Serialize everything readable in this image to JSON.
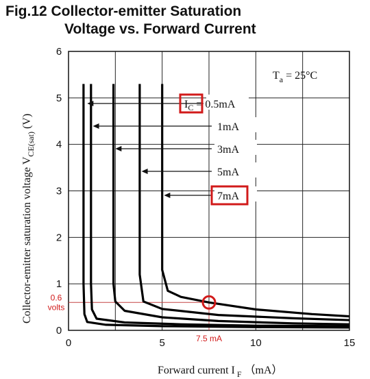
{
  "title_line1": "Fig.12 Collector-emitter Saturation",
  "title_line2": "Voltage vs. Forward Current",
  "chart_data": {
    "type": "line",
    "xlabel": "Forward current I",
    "xlabel_sub": "F",
    "xlabel_unit": "（mA）",
    "ylabel": "Collector-emitter saturation voltage V",
    "ylabel_sub": "CE(sat)",
    "ylabel_unit": "(V)",
    "xlim": [
      0,
      15
    ],
    "ylim": [
      0,
      6
    ],
    "x_ticks": [
      "0",
      "5",
      "10",
      "15"
    ],
    "y_ticks": [
      "0",
      "1",
      "2",
      "3",
      "4",
      "5",
      "6"
    ],
    "grid": true,
    "condition": {
      "prefix": "T",
      "sub": "a",
      "value": " = 25°C"
    },
    "series": [
      {
        "name": "I_C = 0.5mA",
        "label_prefix": "I",
        "label_sub": "C",
        "label_text": " = 0.5mA",
        "boxed_prefix": true,
        "points": [
          [
            0.8,
            5.3
          ],
          [
            0.8,
            1.0
          ],
          [
            0.85,
            0.35
          ],
          [
            1.0,
            0.18
          ],
          [
            2,
            0.12
          ],
          [
            5,
            0.09
          ],
          [
            10,
            0.07
          ],
          [
            15,
            0.06
          ]
        ]
      },
      {
        "name": "1mA",
        "label_text": "1mA",
        "points": [
          [
            1.2,
            5.3
          ],
          [
            1.2,
            1.0
          ],
          [
            1.25,
            0.45
          ],
          [
            1.5,
            0.25
          ],
          [
            3,
            0.17
          ],
          [
            6,
            0.13
          ],
          [
            10,
            0.1
          ],
          [
            15,
            0.09
          ]
        ]
      },
      {
        "name": "3mA",
        "label_text": "3mA",
        "points": [
          [
            2.4,
            5.3
          ],
          [
            2.4,
            1.0
          ],
          [
            2.5,
            0.62
          ],
          [
            3,
            0.42
          ],
          [
            5,
            0.28
          ],
          [
            8,
            0.2
          ],
          [
            12,
            0.15
          ],
          [
            15,
            0.13
          ]
        ]
      },
      {
        "name": "5mA",
        "label_text": "5mA",
        "points": [
          [
            3.8,
            5.3
          ],
          [
            3.8,
            1.2
          ],
          [
            4.0,
            0.62
          ],
          [
            5,
            0.46
          ],
          [
            8,
            0.33
          ],
          [
            12,
            0.26
          ],
          [
            15,
            0.22
          ]
        ]
      },
      {
        "name": "7mA",
        "label_text": "7mA",
        "boxed": true,
        "points": [
          [
            5.0,
            5.3
          ],
          [
            5.0,
            1.3
          ],
          [
            5.3,
            0.85
          ],
          [
            6,
            0.72
          ],
          [
            7.5,
            0.6
          ],
          [
            10,
            0.45
          ],
          [
            13,
            0.35
          ],
          [
            15,
            0.3
          ]
        ]
      }
    ],
    "annotations": {
      "highlight_point": {
        "x": 7.5,
        "y": 0.6
      },
      "x_marker_label": "7.5 mA",
      "y_marker_label_1": "0.6",
      "y_marker_label_2": "volts"
    },
    "colors": {
      "curve": "#000000",
      "grid": "#222222",
      "highlight": "#d11a1a",
      "ref_line": "#c44444"
    }
  }
}
